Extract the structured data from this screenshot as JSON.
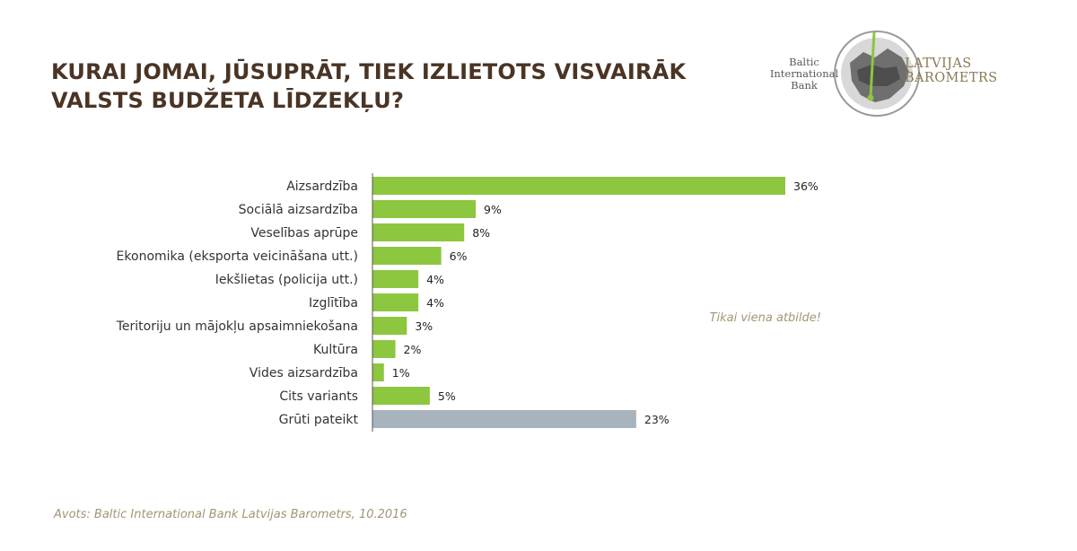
{
  "colors": {
    "title": "#4a3424",
    "bar_primary": "#8dc63f",
    "bar_other": "#a8b4bd",
    "accent_text": "#a29672",
    "axis": "#555555"
  },
  "logo": {
    "left_lines": [
      "Baltic",
      "International",
      "Bank"
    ],
    "right_lines": [
      "LATVIJAS",
      "BAROMETRS"
    ]
  },
  "note": "Tikai viena atbilde!",
  "source": "Avots: Baltic International Bank Latvijas Barometrs, 10.2016",
  "chart_data": {
    "type": "bar",
    "orientation": "horizontal",
    "title": "KURAI JOMAI, JŪSUPRĀT, TIEK IZLIETOTS VISVAIRĀK VALSTS BUDŽETA LĪDZEKĻU?",
    "title_lines": [
      "KURAI JOMAI, JŪSUPRĀT, TIEK IZLIETOTS VISVAIRĀK",
      "VALSTS BUDŽETA LĪDZEKĻU?"
    ],
    "categories": [
      "Aizsardzība",
      "Sociālā aizsardzība",
      "Veselības aprūpe",
      "Ekonomika (eksporta veicināšana utt.)",
      "Iekšlietas (policija utt.)",
      "Izglītība",
      "Teritoriju un mājokļu apsaimniekošana",
      "Kultūra",
      "Vides aizsardzība",
      "Cits variants",
      "Grūti pateikt"
    ],
    "values": [
      36,
      9,
      8,
      6,
      4,
      4,
      3,
      2,
      1,
      5,
      23
    ],
    "value_labels": [
      "36%",
      "9%",
      "8%",
      "6%",
      "4%",
      "4%",
      "3%",
      "2%",
      "1%",
      "5%",
      "23%"
    ],
    "bar_colors": [
      "#8dc63f",
      "#8dc63f",
      "#8dc63f",
      "#8dc63f",
      "#8dc63f",
      "#8dc63f",
      "#8dc63f",
      "#8dc63f",
      "#8dc63f",
      "#8dc63f",
      "#a8b4bd"
    ],
    "unit": "%",
    "xlim": [
      0,
      40
    ],
    "grid": false,
    "legend": "none"
  }
}
